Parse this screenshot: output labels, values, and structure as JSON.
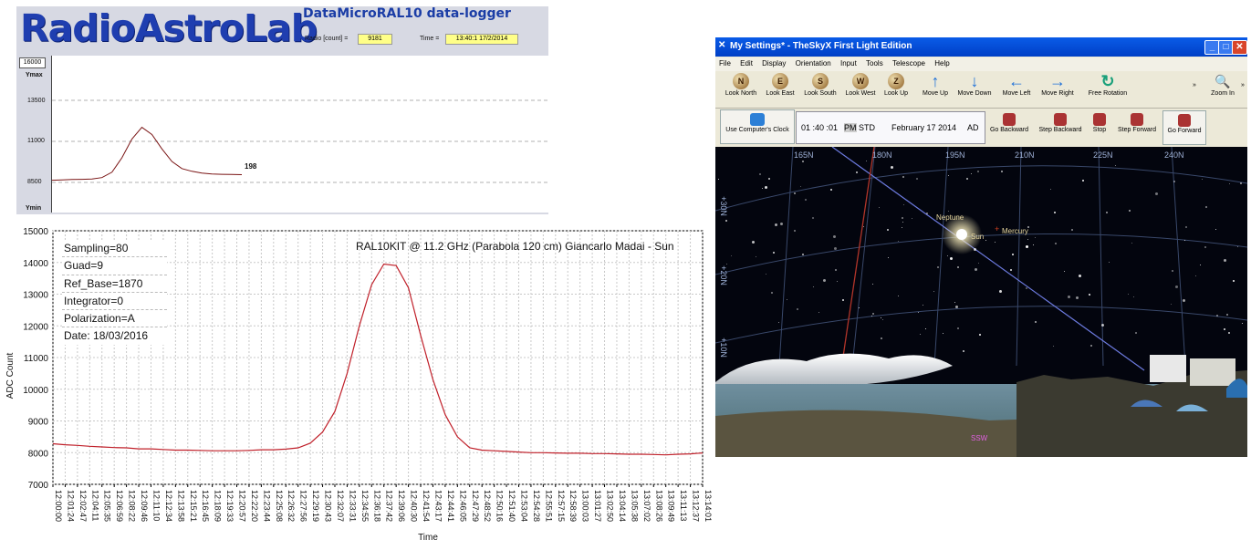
{
  "logger": {
    "brand": "RadioAstroLab",
    "title": "DataMicroRAL10 data-logger",
    "radio_label": "Radio [count] =",
    "radio_value": "9181",
    "time_label": "Time =",
    "time_value": "13:40:1  17/2/2014",
    "ymax_box": "16000",
    "ymax_label": "Ymax",
    "ymin_label": "Ymin",
    "y_ticks": [
      "13500",
      "11000",
      "8500"
    ],
    "trace_end_label": "198",
    "trace_values": [
      9050,
      9070,
      9090,
      9100,
      9120,
      9200,
      9500,
      10300,
      11350,
      12000,
      11600,
      10800,
      10100,
      9700,
      9550,
      9450,
      9400,
      9380,
      9370,
      9360
    ]
  },
  "chart": {
    "title": "RAL10KIT  @ 11.2 GHz (Parabola  120 cm) Giancarlo Madai - Sun",
    "info": [
      "Sampling=80",
      "Guad=9",
      "Ref_Base=1870",
      "Integrator=0",
      "Polarization=A",
      "Date:  18/03/2016"
    ]
  },
  "chart_data": {
    "type": "line",
    "title": "RAL10KIT  @ 11.2 GHz (Parabola  120 cm) Giancarlo Madai - Sun",
    "xlabel": "Time",
    "ylabel": "ADC Count",
    "ylim": [
      7000,
      15000
    ],
    "y_ticks": [
      7000,
      8000,
      9000,
      10000,
      11000,
      12000,
      13000,
      14000,
      15000
    ],
    "x_ticks": [
      "12:00:00",
      "12:01:24",
      "12:02:47",
      "12:04:11",
      "12:05:35",
      "12:06:59",
      "12:08:22",
      "12:09:46",
      "12:11:10",
      "12:12:34",
      "12:13:58",
      "12:15:21",
      "12:16:45",
      "12:18:09",
      "12:19:33",
      "12:20:57",
      "12:22:20",
      "12:23:44",
      "12:25:08",
      "12:26:32",
      "12:27:56",
      "12:29:19",
      "12:30:43",
      "12:32:07",
      "12:33:31",
      "12:34:55",
      "12:36:18",
      "12:37:42",
      "12:39:06",
      "12:40:30",
      "12:41:54",
      "12:43:17",
      "12:44:41",
      "12:46:05",
      "12:47:29",
      "12:48:52",
      "12:50:16",
      "12:51:40",
      "12:53:04",
      "12:54:28",
      "12:55:51",
      "12:57:15",
      "12:58:39",
      "13:00:03",
      "13:01:27",
      "13:02:50",
      "13:04:14",
      "13:05:38",
      "13:07:02",
      "13:08:26",
      "13:09:49",
      "13:11:13",
      "13:12:37",
      "13:14:01"
    ],
    "series": [
      {
        "values": [
          8280,
          8250,
          8230,
          8200,
          8180,
          8160,
          8150,
          8120,
          8120,
          8100,
          8080,
          8080,
          8070,
          8060,
          8060,
          8060,
          8070,
          8090,
          8090,
          8110,
          8150,
          8300,
          8650,
          9300,
          10500,
          12000,
          13300,
          13950,
          13900,
          13200,
          11700,
          10300,
          9200,
          8500,
          8150,
          8080,
          8060,
          8040,
          8020,
          8000,
          8000,
          7990,
          7980,
          7980,
          7970,
          7970,
          7960,
          7950,
          7950,
          7940,
          7930,
          7950,
          7960,
          7990
        ]
      }
    ],
    "grid": true
  },
  "sky": {
    "window_title": "My Settings* - TheSkyX First Light Edition",
    "menu": [
      "File",
      "Edit",
      "Display",
      "Orientation",
      "Input",
      "Tools",
      "Telescope",
      "Help"
    ],
    "toolbar": [
      {
        "letter": "N",
        "label": "Look North"
      },
      {
        "letter": "E",
        "label": "Look East"
      },
      {
        "letter": "S",
        "label": "Look South"
      },
      {
        "letter": "W",
        "label": "Look West"
      },
      {
        "letter": "Z",
        "label": "Look Up"
      },
      {
        "letter": "↑",
        "label": "Move Up"
      },
      {
        "letter": "↓",
        "label": "Move Down"
      },
      {
        "letter": "←",
        "label": "Move Left"
      },
      {
        "letter": "→",
        "label": "Move Right"
      },
      {
        "letter": "↻",
        "label": "Free Rotation"
      }
    ],
    "zoom_label": "Zoom In",
    "overflow": "»",
    "use_clock_label": "Use Computer's Clock",
    "clock_time": "01 :40 :01",
    "clock_ampm": "PM",
    "clock_zone": "STD",
    "clock_date": "February 17 2014",
    "clock_era": "AD",
    "time_controls": [
      "Go Backward",
      "Step Backward",
      "Stop",
      "Step Forward",
      "Go Forward"
    ],
    "azimuth_labels": [
      "165N",
      "180N",
      "195N",
      "210N",
      "225N",
      "240N"
    ],
    "altitude_labels": [
      "+30N",
      "+20N",
      "+10N"
    ],
    "objects": {
      "neptune": "Neptune",
      "sun": "Sun",
      "mercury": "Mercury"
    },
    "horizon_labels": [
      "SSW"
    ]
  }
}
